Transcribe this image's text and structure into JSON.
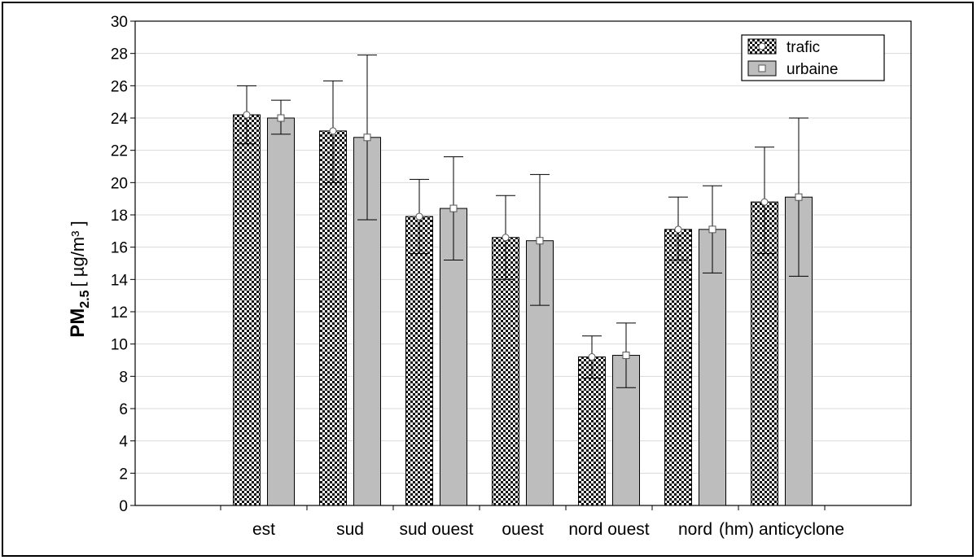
{
  "chart_data": {
    "type": "bar",
    "title": "",
    "xlabel": "",
    "ylabel": {
      "main": "PM",
      "sub": "2.5",
      "unit": "[ µg/m³ ]"
    },
    "ylim": [
      0,
      30
    ],
    "yticks": [
      0,
      2,
      4,
      6,
      8,
      10,
      12,
      14,
      16,
      18,
      20,
      22,
      24,
      26,
      28,
      30
    ],
    "grid": true,
    "legend_position": "top-right",
    "categories": [
      "est",
      "sud",
      "sud ouest",
      "ouest",
      "nord ouest",
      "nord",
      "(hm) anticyclone"
    ],
    "series": [
      {
        "name": "trafic",
        "values": [
          24.2,
          23.2,
          17.9,
          16.6,
          9.2,
          17.1,
          18.8
        ],
        "err_low": [
          22.4,
          20.0,
          15.6,
          14.0,
          7.9,
          15.2,
          15.6
        ],
        "err_high": [
          26.0,
          26.3,
          20.2,
          19.2,
          10.5,
          19.1,
          22.2
        ],
        "pattern": "checkered"
      },
      {
        "name": "urbaine",
        "values": [
          24.0,
          22.8,
          18.4,
          16.4,
          9.3,
          17.1,
          19.1
        ],
        "err_low": [
          23.0,
          17.7,
          15.2,
          12.4,
          7.3,
          14.4,
          14.2
        ],
        "err_high": [
          25.1,
          27.9,
          21.6,
          20.5,
          11.3,
          19.8,
          24.0
        ],
        "pattern": "gray",
        "color": "#bdbdbd"
      }
    ]
  }
}
